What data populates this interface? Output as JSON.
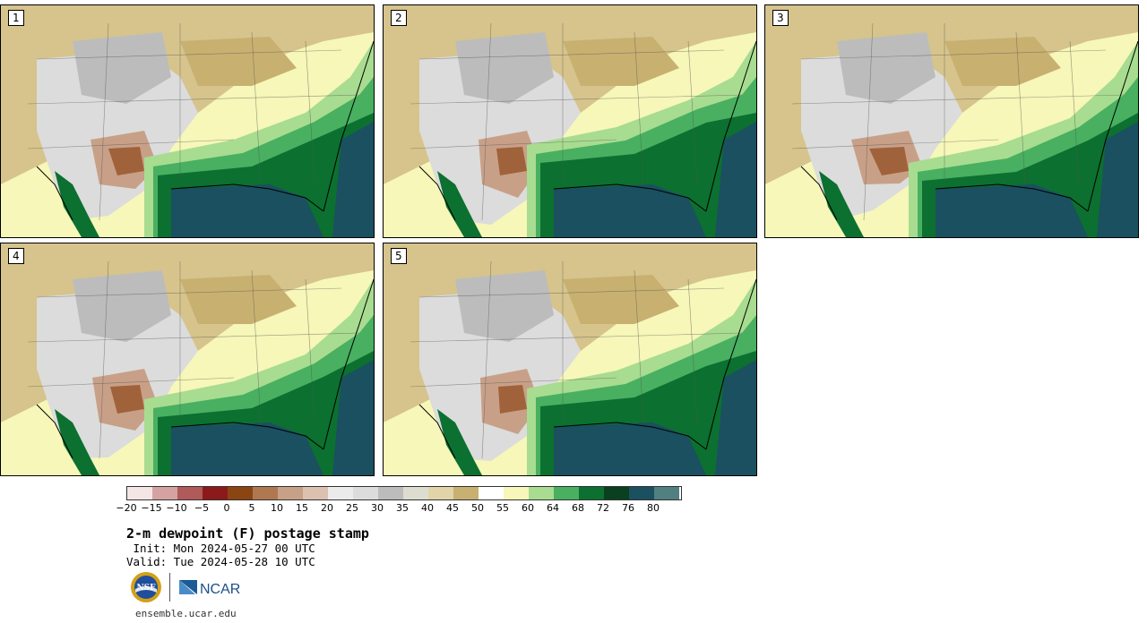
{
  "panels": [
    {
      "label": "1"
    },
    {
      "label": "2"
    },
    {
      "label": "3"
    },
    {
      "label": "4"
    },
    {
      "label": "5"
    }
  ],
  "colorbar": {
    "colors": [
      "#f5e6e6",
      "#d5a2a2",
      "#b05a5a",
      "#8c1a1a",
      "#8b4513",
      "#b07850",
      "#c8a088",
      "#dcc0b0",
      "#ebebeb",
      "#dcdcdc",
      "#bcbcbc",
      "#dcdcd0",
      "#e0d4a8",
      "#c8b070",
      "#ffffff",
      "#f6f7b8",
      "#a8dc90",
      "#48b060",
      "#0c7030",
      "#0a4020",
      "#1a5060",
      "#508080"
    ],
    "ticks": [
      "−20",
      "−15",
      "−10",
      "−5",
      "0",
      "5",
      "10",
      "15",
      "20",
      "25",
      "30",
      "35",
      "40",
      "45",
      "50",
      "55",
      "60",
      "64",
      "68",
      "72",
      "76",
      "80"
    ]
  },
  "title": "2-m dewpoint (F) postage stamp",
  "init": " Init: Mon 2024-05-27 00 UTC",
  "valid": "Valid: Tue 2024-05-28 10 UTC",
  "logos": {
    "nsf": "NSF",
    "ncar": "NCAR"
  },
  "site": "ensemble.ucar.edu"
}
